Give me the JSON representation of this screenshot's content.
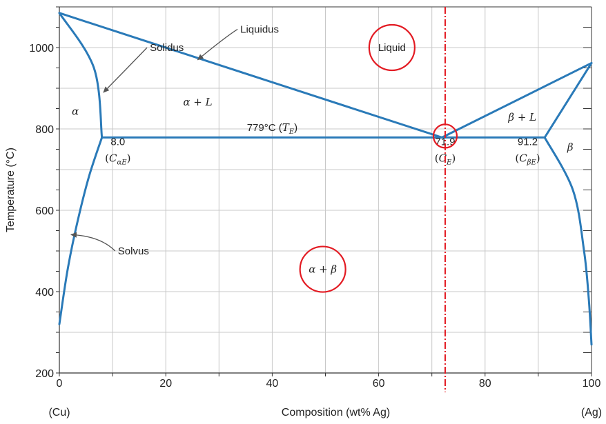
{
  "chart_data": {
    "type": "line",
    "title": "",
    "xlabel": "Composition (wt% Ag)",
    "ylabel": "Temperature (°C)",
    "xlim": [
      0,
      100
    ],
    "ylim": [
      200,
      1100
    ],
    "x_ticks": [
      "0",
      "20",
      "40",
      "60",
      "80",
      "100"
    ],
    "y_ticks": [
      "200",
      "400",
      "600",
      "800",
      "1000"
    ],
    "x_end_labels": {
      "left": "(Cu)",
      "right": "(Ag)"
    },
    "grid": true,
    "line_color": "#2a7ab8",
    "highlight_color": "#e31b23",
    "series": [
      {
        "name": "Liquidus",
        "points": [
          [
            0,
            1085
          ],
          [
            71.9,
            779
          ],
          [
            100,
            962
          ]
        ]
      },
      {
        "name": "Solidus",
        "points": [
          [
            0,
            1085
          ],
          [
            6.5,
            950
          ],
          [
            8.0,
            779
          ]
        ]
      },
      {
        "name": "Solvus",
        "points": [
          [
            8.0,
            779
          ],
          [
            5.5,
            680
          ],
          [
            3.2,
            560
          ],
          [
            1.5,
            450
          ],
          [
            0,
            320
          ]
        ]
      },
      {
        "name": "Solidus",
        "points": [
          [
            100,
            962
          ],
          [
            91.2,
            779
          ]
        ]
      },
      {
        "name": "Solvus",
        "points": [
          [
            91.2,
            779
          ],
          [
            96.5,
            650
          ],
          [
            98.6,
            500
          ],
          [
            99.5,
            380
          ],
          [
            100,
            270
          ]
        ]
      },
      {
        "name": "Eutectic isotherm",
        "points": [
          [
            8.0,
            779
          ],
          [
            91.2,
            779
          ]
        ]
      }
    ],
    "annotations": {
      "callouts": [
        {
          "label": "Liquidus",
          "at": [
            26,
            970
          ],
          "text_at": [
            34,
            1045
          ]
        },
        {
          "label": "Solidus",
          "at": [
            8.3,
            890
          ],
          "text_at": [
            17,
            1000
          ]
        },
        {
          "label": "Solvus",
          "at": [
            2.2,
            540
          ],
          "text_at": [
            11,
            500
          ]
        }
      ],
      "phase_labels": [
        {
          "text": "α",
          "at": [
            3,
            835
          ]
        },
        {
          "text": "α + L",
          "at": [
            26,
            858
          ]
        },
        {
          "text": "β + L",
          "at": [
            87,
            820
          ]
        },
        {
          "text": "β",
          "at": [
            96,
            747
          ]
        }
      ],
      "eutectic_label": {
        "prefix": "779°C (",
        "symbol": "T",
        "subscript": "E",
        "suffix": ")",
        "at": [
          40,
          795
        ]
      },
      "composition_labels": [
        {
          "value": "8.0",
          "symbol": "C",
          "subscript": "αE",
          "at": [
            11,
            750
          ]
        },
        {
          "value": "71.9",
          "symbol": "C",
          "subscript": "E",
          "at": [
            72.5,
            750
          ]
        },
        {
          "value": "91.2",
          "symbol": "C",
          "subscript": "βE",
          "at": [
            88,
            750
          ]
        }
      ],
      "circled_labels": [
        {
          "text": "Liquid",
          "at": [
            62.5,
            1000
          ]
        },
        {
          "text": "α + β",
          "at": [
            49.5,
            455
          ]
        }
      ],
      "circled_point": {
        "at": [
          72.5,
          779
        ]
      },
      "vertical_marker": {
        "x": 72.5,
        "style": "dash-dot"
      }
    }
  }
}
